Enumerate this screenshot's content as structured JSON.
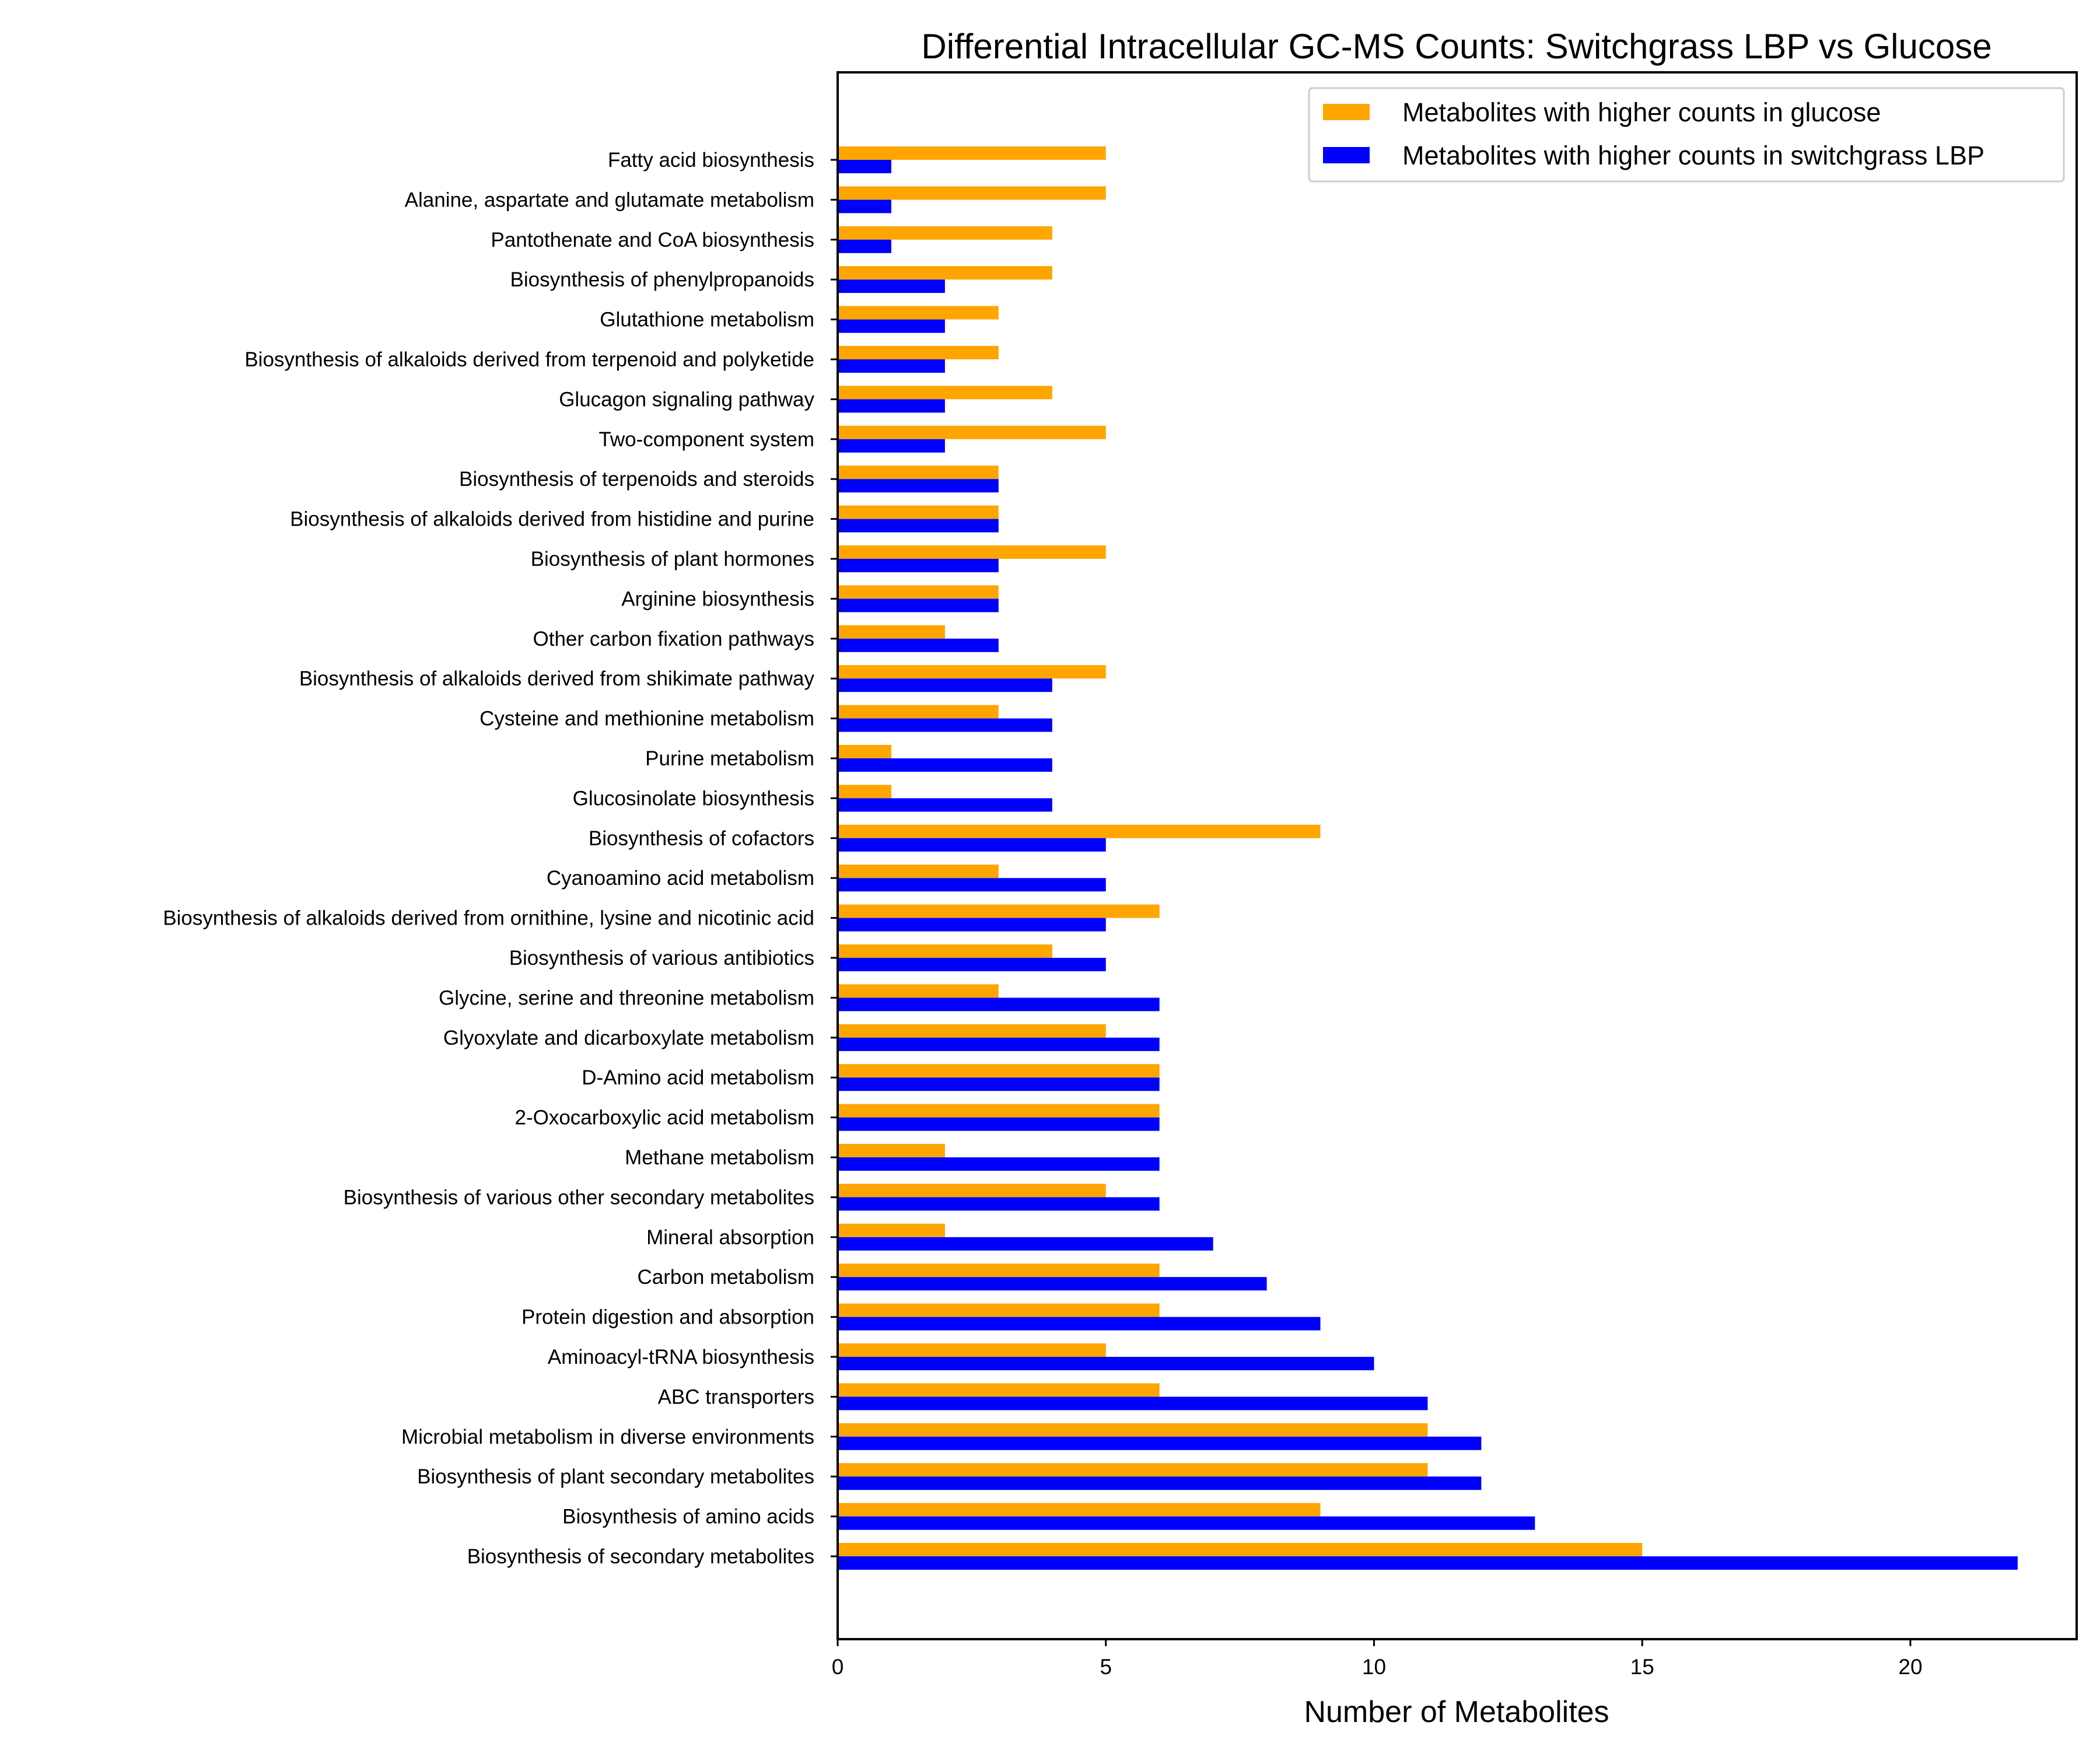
{
  "chart_data": {
    "type": "bar",
    "orientation": "horizontal",
    "title": "Differential Intracellular GC-MS Counts: Switchgrass LBP vs Glucose",
    "xlabel": "Number of Metabolites",
    "ylabel": "",
    "xlim": [
      0,
      23.1
    ],
    "xticks": [
      0,
      5,
      10,
      15,
      20
    ],
    "grid": false,
    "legend_position": "top-right",
    "categories": [
      "Fatty acid biosynthesis",
      "Alanine, aspartate and glutamate metabolism",
      "Pantothenate and CoA biosynthesis",
      "Biosynthesis of phenylpropanoids",
      "Glutathione metabolism",
      "Biosynthesis of alkaloids derived from terpenoid and polyketide",
      "Glucagon signaling pathway",
      "Two-component system",
      "Biosynthesis of terpenoids and steroids",
      "Biosynthesis of alkaloids derived from histidine and purine",
      "Biosynthesis of plant hormones",
      "Arginine biosynthesis",
      "Other carbon fixation pathways",
      "Biosynthesis of alkaloids derived from shikimate pathway",
      "Cysteine and methionine metabolism",
      "Purine metabolism",
      "Glucosinolate biosynthesis",
      "Biosynthesis of cofactors",
      "Cyanoamino acid metabolism",
      "Biosynthesis of alkaloids derived from ornithine, lysine and nicotinic acid",
      "Biosynthesis of various antibiotics",
      "Glycine, serine and threonine metabolism",
      "Glyoxylate and dicarboxylate metabolism",
      "D-Amino acid metabolism",
      "2-Oxocarboxylic acid metabolism",
      "Methane metabolism",
      "Biosynthesis of various other secondary metabolites",
      "Mineral absorption",
      "Carbon metabolism",
      "Protein digestion and absorption",
      "Aminoacyl-tRNA biosynthesis",
      "ABC transporters",
      "Microbial metabolism in diverse environments",
      "Biosynthesis of plant secondary metabolites",
      "Biosynthesis of amino acids",
      "Biosynthesis of secondary metabolites"
    ],
    "series": [
      {
        "name": "Metabolites with higher counts in glucose",
        "color": "#FFA500",
        "values": [
          5,
          5,
          4,
          4,
          3,
          3,
          4,
          5,
          3,
          3,
          5,
          3,
          2,
          5,
          3,
          1,
          1,
          9,
          3,
          6,
          4,
          3,
          5,
          6,
          6,
          2,
          5,
          2,
          6,
          6,
          5,
          6,
          11,
          11,
          9,
          15
        ]
      },
      {
        "name": "Metabolites with higher counts in switchgrass LBP",
        "color": "#0000FF",
        "values": [
          1,
          1,
          1,
          2,
          2,
          2,
          2,
          2,
          3,
          3,
          3,
          3,
          3,
          4,
          4,
          4,
          4,
          5,
          5,
          5,
          5,
          6,
          6,
          6,
          6,
          6,
          6,
          7,
          8,
          9,
          10,
          11,
          12,
          12,
          13,
          22
        ]
      }
    ]
  }
}
